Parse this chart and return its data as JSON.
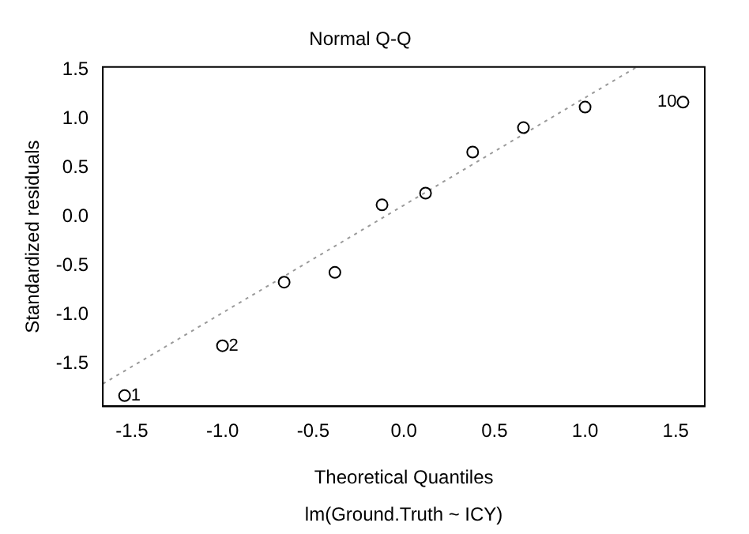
{
  "chart_data": {
    "type": "scatter",
    "title": "Normal Q-Q",
    "xlabel": "Theoretical Quantiles",
    "ylabel": "Standardized residuals",
    "annotations": [
      "lm(Ground.Truth ~ ICY)",
      {
        "text": "1",
        "x": -1.54,
        "y": -1.83
      },
      {
        "text": "2",
        "x": -1.0,
        "y": -1.32
      },
      {
        "text": "10",
        "x": 1.54,
        "y": 1.17
      }
    ],
    "series": [
      {
        "type": "scatter",
        "color": "#000000",
        "marker": "circle",
        "x": [
          -1.54,
          -1.0,
          -0.66,
          -0.38,
          -0.12,
          0.12,
          0.38,
          0.66,
          1.0,
          1.54
        ],
        "values": [
          -1.83,
          -1.32,
          -0.67,
          -0.57,
          0.12,
          0.24,
          0.66,
          0.91,
          1.12,
          1.17
        ]
      },
      {
        "type": "line",
        "color": "#999999",
        "line_style": "dotted",
        "marker": "none",
        "x": [
          -1.66,
          1.285
        ],
        "values": [
          -1.71,
          1.53
        ]
      }
    ],
    "xlim": [
      -1.66,
      1.66
    ],
    "ylim": [
      -1.94,
      1.53
    ],
    "xticks": [
      -1.5,
      {
        "value": -1,
        "label": "-1.0"
      },
      -0.5,
      {
        "value": 0,
        "label": "0.0"
      },
      0.5,
      {
        "value": 1,
        "label": "1.0"
      },
      1.5
    ],
    "yticks": [
      -1.5,
      {
        "value": -1,
        "label": "-1.0"
      },
      -0.5,
      {
        "value": 0,
        "label": "0.0"
      },
      0.5,
      {
        "value": 1,
        "label": "1.0"
      },
      1.5
    ],
    "grid": false,
    "legend": false
  }
}
